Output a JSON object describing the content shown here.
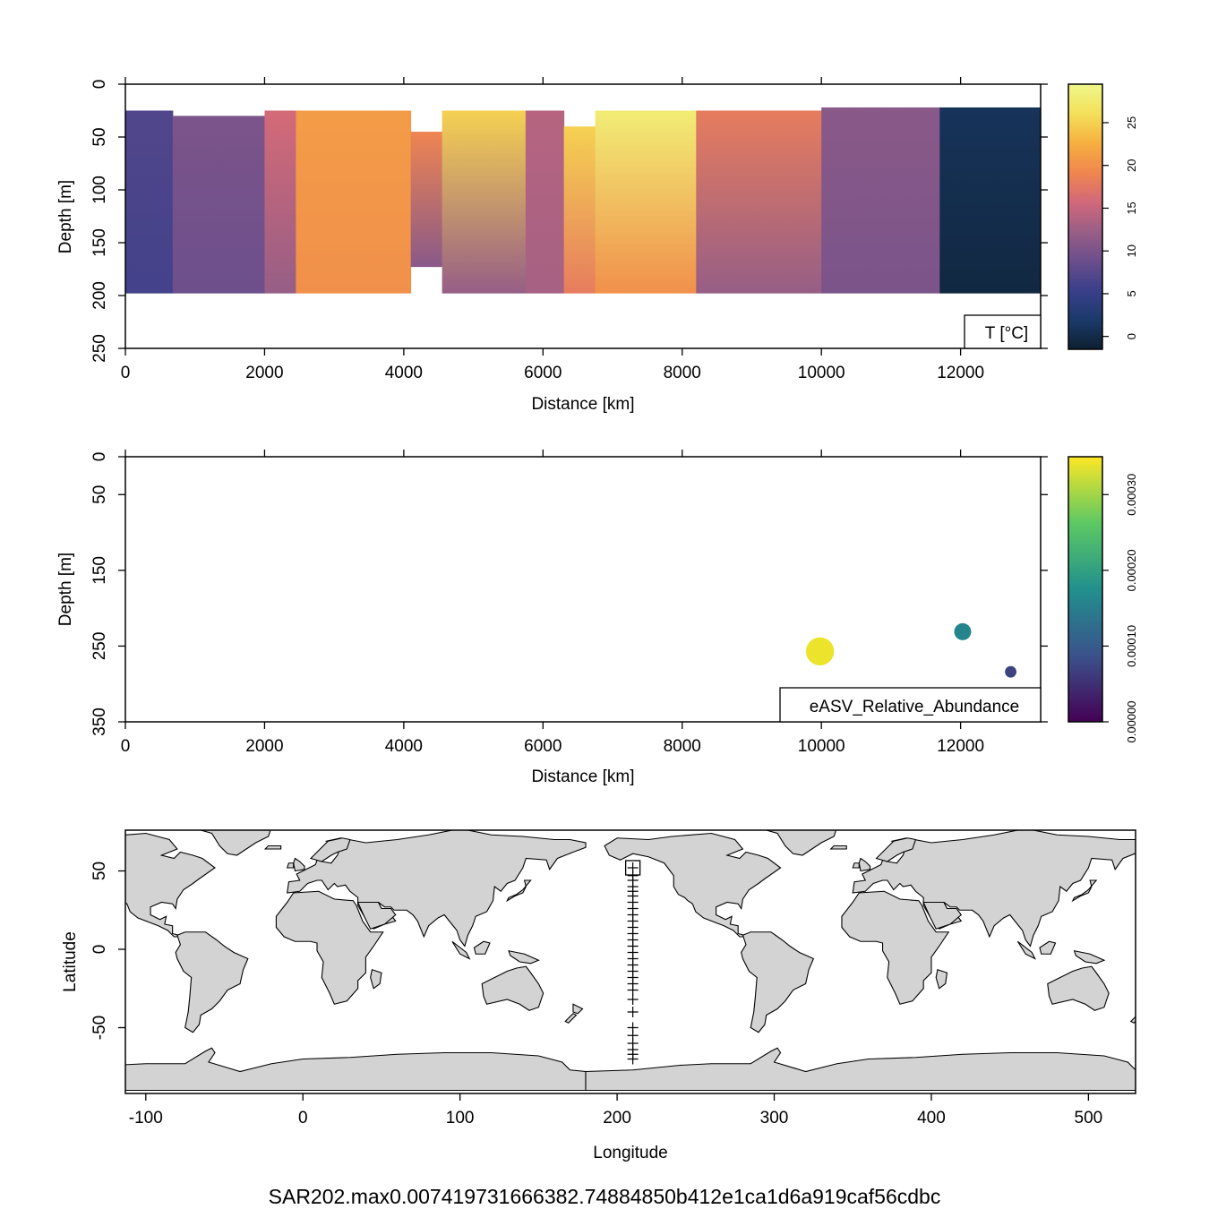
{
  "footer_label": "SAR202.max0.007419731666382.74884850b412e1ca1d6a919caf56cdbc",
  "chart_data": [
    {
      "type": "heatmap",
      "panel": "temperature-section",
      "xlabel": "Distance [km]",
      "ylabel": "Depth [m]",
      "xlim": [
        0,
        13150
      ],
      "ylim": [
        250,
        0
      ],
      "x_ticks": [
        "0",
        "2000",
        "4000",
        "6000",
        "8000",
        "10000",
        "12000"
      ],
      "y_ticks": [
        "0",
        "50",
        "100",
        "150",
        "200",
        "250"
      ],
      "legend_label": "T [°C]",
      "colorbar": {
        "min": -1.5,
        "max": 29.5,
        "ticks": [
          "0",
          "5",
          "10",
          "15",
          "20",
          "25"
        ],
        "colors": [
          "#0d2030",
          "#1b3a6a",
          "#3a3f8a",
          "#6b4e8c",
          "#9a5f86",
          "#d2687a",
          "#f0864f",
          "#f6b040",
          "#f4e05a",
          "#eef78a"
        ]
      },
      "sections": [
        {
          "x0": 0,
          "x1": 680,
          "top": 25,
          "bottom": 198,
          "surface": 7,
          "deep": 6
        },
        {
          "x0": 680,
          "x1": 2000,
          "top": 30,
          "bottom": 198,
          "surface": 10,
          "deep": 9
        },
        {
          "x0": 2000,
          "x1": 2450,
          "top": 25,
          "bottom": 198,
          "surface": 16,
          "deep": 12
        },
        {
          "x0": 2450,
          "x1": 4100,
          "top": 25,
          "bottom": 198,
          "surface": 21,
          "deep": 20
        },
        {
          "x0": 4100,
          "x1": 4550,
          "top": 45,
          "bottom": 173,
          "surface": 19,
          "deep": 11
        },
        {
          "x0": 4550,
          "x1": 5750,
          "top": 25,
          "bottom": 198,
          "surface": 25,
          "deep": 12
        },
        {
          "x0": 5750,
          "x1": 6300,
          "top": 25,
          "bottom": 198,
          "surface": 14,
          "deep": 13
        },
        {
          "x0": 6300,
          "x1": 6750,
          "top": 40,
          "bottom": 198,
          "surface": 25,
          "deep": 18
        },
        {
          "x0": 6750,
          "x1": 8200,
          "top": 25,
          "bottom": 198,
          "surface": 28,
          "deep": 20
        },
        {
          "x0": 8200,
          "x1": 10000,
          "top": 25,
          "bottom": 198,
          "surface": 18,
          "deep": 12
        },
        {
          "x0": 10000,
          "x1": 11700,
          "top": 22,
          "bottom": 198,
          "surface": 11,
          "deep": 10
        },
        {
          "x0": 11700,
          "x1": 13150,
          "top": 22,
          "bottom": 198,
          "surface": 1,
          "deep": -0.5
        }
      ]
    },
    {
      "type": "scatter",
      "panel": "eASV-abundance-section",
      "xlabel": "Distance [km]",
      "ylabel": "Depth [m]",
      "xlim": [
        0,
        13150
      ],
      "ylim": [
        350,
        0
      ],
      "x_ticks": [
        "0",
        "2000",
        "4000",
        "6000",
        "8000",
        "10000",
        "12000"
      ],
      "y_ticks": [
        "0",
        "50",
        "150",
        "250",
        "350"
      ],
      "legend_label": "eASV_Relative_Abundance",
      "colorbar": {
        "min": 0,
        "max": 0.00035,
        "ticks": [
          "0.00000",
          "0.00010",
          "0.00020",
          "0.00030"
        ],
        "colors": [
          "#440154",
          "#3b528b",
          "#21908d",
          "#5dc863",
          "#fde725"
        ]
      },
      "points": [
        {
          "x": 9980,
          "y": 257,
          "value": 0.00034
        },
        {
          "x": 12030,
          "y": 231,
          "value": 0.00016
        },
        {
          "x": 12720,
          "y": 284,
          "value": 7e-05
        }
      ]
    },
    {
      "type": "map",
      "panel": "station-map",
      "xlabel": "Longitude",
      "ylabel": "Latitude",
      "xlim": [
        -113,
        530
      ],
      "ylim": [
        -92,
        76
      ],
      "x_ticks": [
        "-100",
        "0",
        "100",
        "200",
        "300",
        "400",
        "500"
      ],
      "y_ticks": [
        "-50",
        "0",
        "50"
      ],
      "station_longitude": 210,
      "station_latitudes": [
        52,
        47,
        44,
        40,
        37,
        34,
        30,
        26,
        22,
        18,
        14,
        10,
        6,
        2,
        -2,
        -6,
        -10,
        -14,
        -18,
        -22,
        -26,
        -32,
        -40,
        -50,
        -55,
        -60,
        -64,
        -67,
        -70
      ],
      "highlight_station": {
        "lon": 210,
        "lat": 52
      }
    }
  ]
}
